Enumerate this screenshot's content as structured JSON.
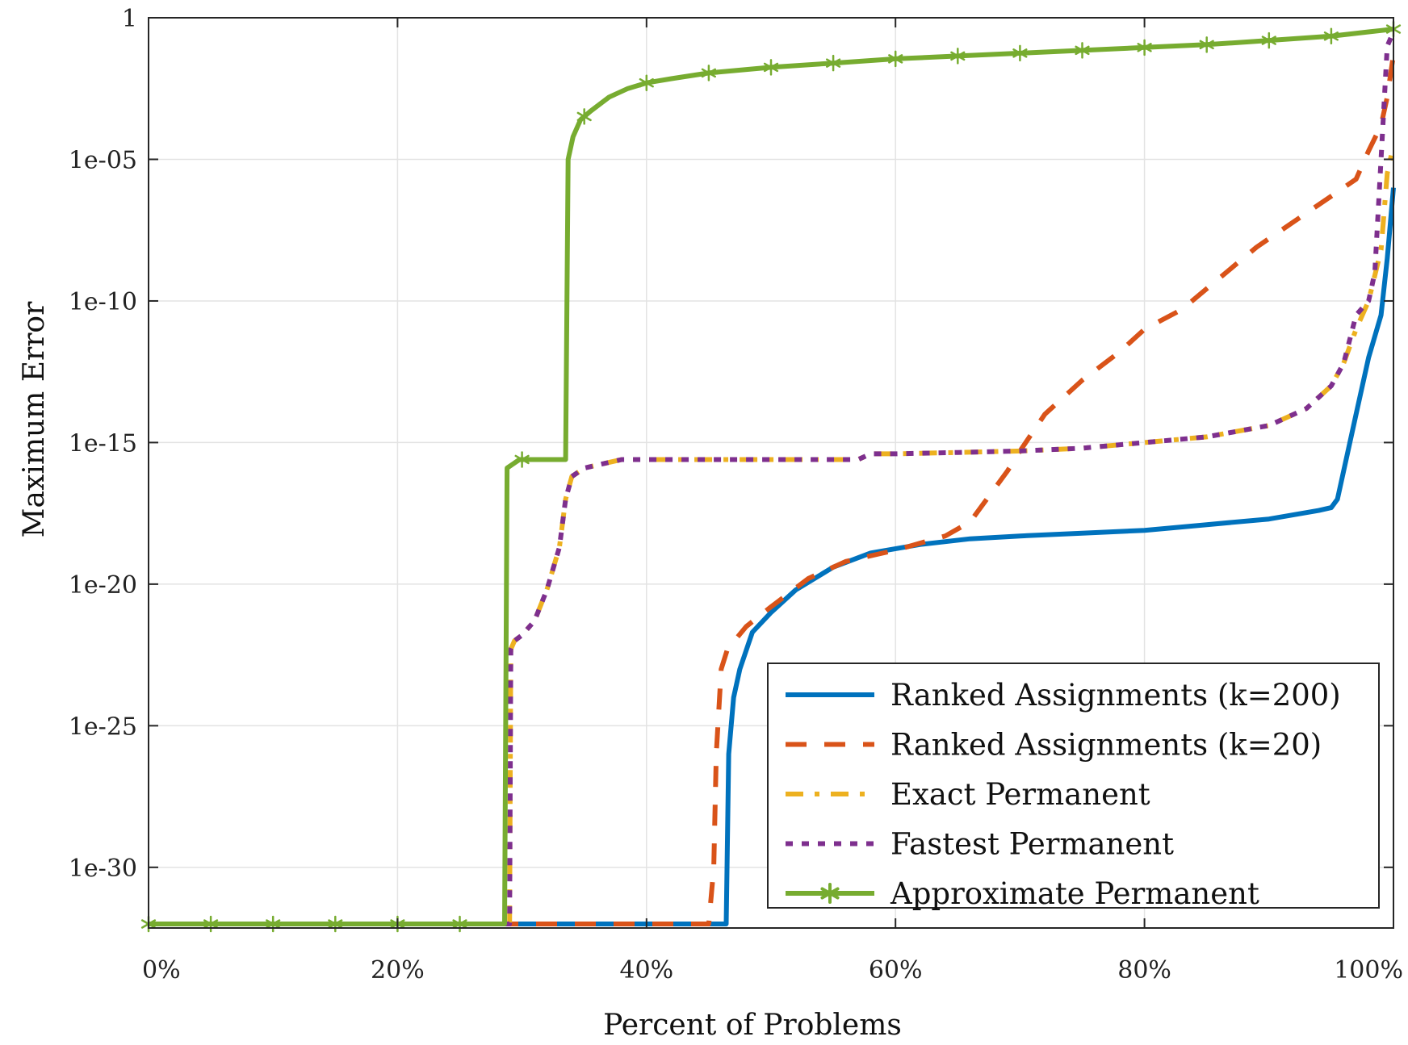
{
  "chart_data": {
    "type": "line",
    "title": "",
    "xlabel": "Percent of Problems",
    "ylabel": "Maximum Error",
    "x_ticks": [
      "0%",
      "20%",
      "40%",
      "60%",
      "80%",
      "100%"
    ],
    "x_tick_values": [
      0,
      20,
      40,
      60,
      80,
      100
    ],
    "y_ticks": [
      "1",
      "1e-05",
      "1e-10",
      "1e-15",
      "1e-20",
      "1e-25",
      "1e-30"
    ],
    "y_tick_values": [
      0,
      -5,
      -10,
      -15,
      -20,
      -25,
      -30
    ],
    "y_scale": "log",
    "xlim": [
      0,
      100
    ],
    "ylim_log10": [
      -32,
      0
    ],
    "grid": true,
    "legend_position": "bottom-right",
    "series": [
      {
        "name": "Ranked Assignments (k=200)",
        "color": "#0072BD",
        "style": "solid",
        "x": [
          0,
          46.4,
          46.6,
          47.0,
          47.5,
          48.5,
          50,
          52,
          55,
          58,
          62,
          66,
          70,
          75,
          80,
          85,
          90,
          94,
          95,
          95.5,
          96,
          97,
          98,
          99,
          99.5,
          100
        ],
        "log10_y": [
          -32,
          -32,
          -26,
          -24,
          -23,
          -21.7,
          -21,
          -20.2,
          -19.4,
          -18.9,
          -18.6,
          -18.4,
          -18.3,
          -18.2,
          -18.1,
          -17.9,
          -17.7,
          -17.4,
          -17.3,
          -17.0,
          -16.0,
          -14.0,
          -12.0,
          -10.5,
          -8.5,
          -6
        ]
      },
      {
        "name": "Ranked Assignments (k=20)",
        "color": "#D95319",
        "style": "dashed",
        "x": [
          0,
          45.0,
          45.4,
          45.6,
          46.0,
          46.5,
          48,
          50,
          53,
          56,
          60,
          64,
          66,
          67,
          69,
          70,
          72,
          75,
          78,
          80,
          83,
          86,
          89,
          92,
          95,
          97,
          98,
          99,
          99.5,
          100
        ],
        "log10_y": [
          -32,
          -32,
          -30,
          -26,
          -23,
          -22.3,
          -21.5,
          -20.8,
          -19.8,
          -19.2,
          -18.8,
          -18.3,
          -17.8,
          -17.2,
          -16.0,
          -15.3,
          -14.0,
          -12.8,
          -11.8,
          -11.0,
          -10.3,
          -9.2,
          -8.1,
          -7.2,
          -6.3,
          -5.7,
          -4.7,
          -3.8,
          -2.8,
          -1.3
        ]
      },
      {
        "name": "Exact Permanent",
        "color": "#EDB120",
        "style": "dashdot",
        "x": [
          0,
          29.0,
          29.1,
          29.4,
          30,
          31,
          32,
          33,
          33.5,
          34,
          35,
          38,
          45,
          50,
          57,
          58,
          60,
          65,
          70,
          75,
          80,
          85,
          90,
          93,
          95,
          96,
          97,
          98,
          99,
          99.5,
          100
        ],
        "log10_y": [
          -32,
          -32,
          -22.3,
          -22.0,
          -21.8,
          -21.3,
          -20.2,
          -18.7,
          -17.0,
          -16.2,
          -15.9,
          -15.6,
          -15.6,
          -15.6,
          -15.6,
          -15.4,
          -15.4,
          -15.35,
          -15.3,
          -15.2,
          -15.0,
          -14.8,
          -14.4,
          -13.8,
          -13.0,
          -12.2,
          -11.0,
          -10.0,
          -8.2,
          -5.5,
          -4.5
        ]
      },
      {
        "name": "Fastest Permanent",
        "color": "#7E2F8E",
        "style": "dotted",
        "x": [
          0,
          29.0,
          29.1,
          29.4,
          30,
          31,
          32,
          33,
          33.5,
          34,
          35,
          38,
          45,
          50,
          57,
          58,
          60,
          65,
          70,
          75,
          80,
          85,
          90,
          93,
          95,
          96,
          97,
          98,
          98.5,
          99,
          99.5,
          100
        ],
        "log10_y": [
          -32,
          -32,
          -22.3,
          -22.0,
          -21.8,
          -21.3,
          -20.2,
          -18.7,
          -17.0,
          -16.2,
          -15.9,
          -15.6,
          -15.6,
          -15.6,
          -15.6,
          -15.4,
          -15.4,
          -15.35,
          -15.3,
          -15.2,
          -15.0,
          -14.8,
          -14.4,
          -13.8,
          -13.0,
          -12.2,
          -10.5,
          -10.0,
          -9.0,
          -5.0,
          -1.0,
          -0.5
        ]
      },
      {
        "name": "Approximate Permanent",
        "color": "#77AC30",
        "style": "solid-star",
        "x": [
          0,
          28.6,
          28.8,
          29.8,
          33.5,
          33.7,
          34.1,
          34.7,
          35.5,
          37,
          38.5,
          40,
          42,
          45,
          50,
          55,
          60,
          65,
          70,
          75,
          80,
          85,
          90,
          95,
          98,
          99,
          100
        ],
        "log10_y": [
          -32,
          -32,
          -15.9,
          -15.6,
          -15.6,
          -5.0,
          -4.2,
          -3.6,
          -3.3,
          -2.8,
          -2.5,
          -2.3,
          -2.15,
          -1.95,
          -1.75,
          -1.6,
          -1.45,
          -1.35,
          -1.25,
          -1.15,
          -1.05,
          -0.95,
          -0.8,
          -0.65,
          -0.5,
          -0.45,
          -0.4
        ],
        "marker_x": [
          0,
          5,
          10,
          15,
          20,
          25,
          30,
          35,
          40,
          45,
          50,
          55,
          60,
          65,
          70,
          75,
          80,
          85,
          90,
          95,
          100
        ]
      }
    ]
  }
}
